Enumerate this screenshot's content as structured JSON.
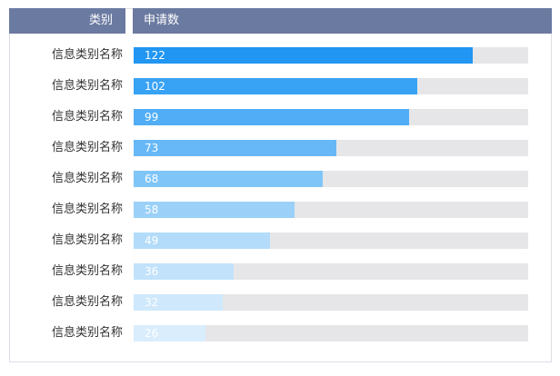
{
  "header": {
    "category_label": "类别",
    "value_label": "申请数"
  },
  "chart_data": {
    "type": "bar",
    "orientation": "horizontal",
    "categories": [
      "信息类别名称",
      "信息类别名称",
      "信息类别名称",
      "信息类别名称",
      "信息类别名称",
      "信息类别名称",
      "信息类别名称",
      "信息类别名称",
      "信息类别名称",
      "信息类别名称"
    ],
    "values": [
      122,
      102,
      99,
      73,
      68,
      58,
      49,
      36,
      32,
      26
    ],
    "xlim": [
      0,
      142
    ],
    "grid": false,
    "bar_colors": [
      "#2196f3",
      "#38a2f5",
      "#50adf6",
      "#66b8f7",
      "#80c5f8",
      "#9bd1f9",
      "#b3dcfa",
      "#c2e2fb",
      "#cfe8fb",
      "#d9edfc"
    ],
    "track_color": "#e6e6e8"
  }
}
